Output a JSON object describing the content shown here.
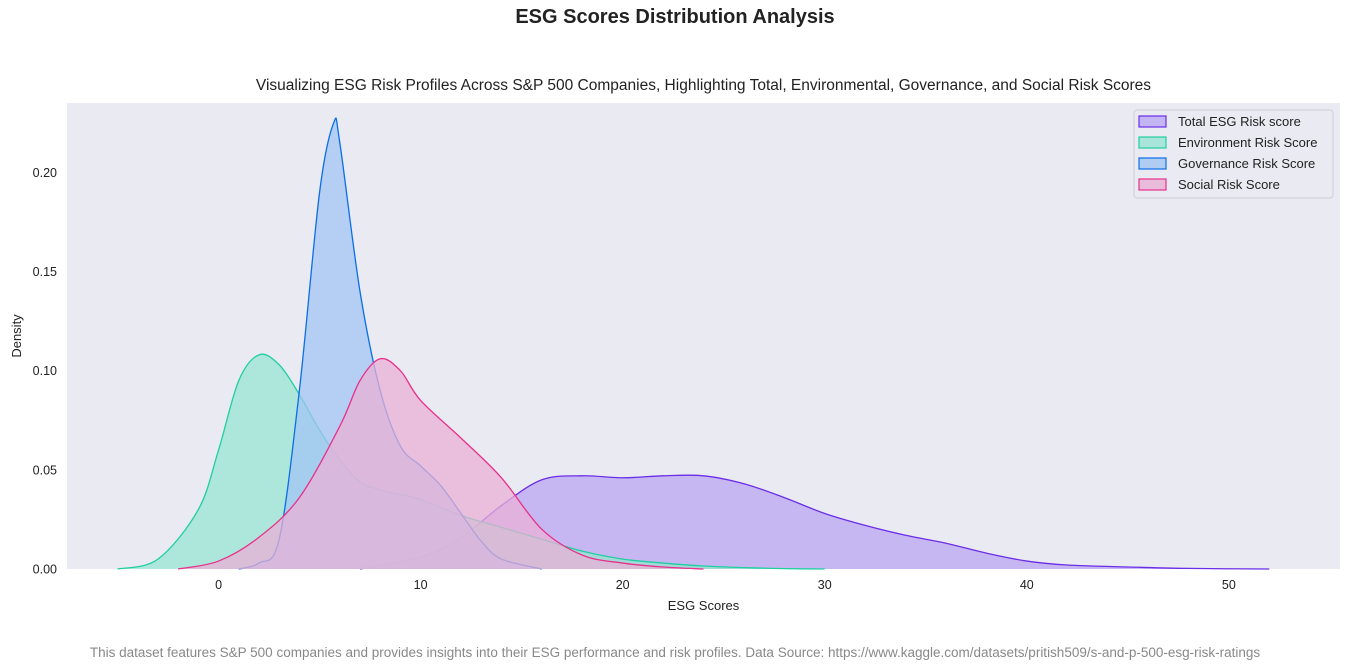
{
  "page": {
    "title": "ESG Scores Distribution Analysis",
    "footnote": "This dataset features S&P 500 companies and provides insights into their ESG performance and risk profiles. Data Source: https://www.kaggle.com/datasets/pritish509/s-and-p-500-esg-risk-ratings"
  },
  "chart_data": {
    "type": "area",
    "subtitle": "Visualizing ESG Risk Profiles Across S&P 500 Companies, Highlighting Total, Environmental, Governance, and Social Risk Scores",
    "xlabel": "ESG Scores",
    "ylabel": "Density",
    "xlim": [
      -7.5,
      55.5
    ],
    "ylim": [
      0,
      0.235
    ],
    "xticks": [
      0,
      10,
      20,
      30,
      40,
      50
    ],
    "yticks": [
      0.0,
      0.05,
      0.1,
      0.15,
      0.2
    ],
    "grid": false,
    "background": "#eaeaf2",
    "legend_position": "top-right",
    "series": [
      {
        "name": "Total ESG Risk score",
        "color": "#6a2ee8",
        "fill": "#b9a6f2",
        "x": [
          7,
          10,
          12,
          14,
          16,
          18,
          20,
          22,
          24,
          26,
          28,
          30,
          32,
          34,
          36,
          38,
          40,
          42,
          45,
          48,
          52
        ],
        "y": [
          0.0,
          0.006,
          0.016,
          0.032,
          0.045,
          0.047,
          0.046,
          0.047,
          0.047,
          0.043,
          0.036,
          0.028,
          0.022,
          0.017,
          0.013,
          0.008,
          0.004,
          0.002,
          0.001,
          0.0003,
          0.0
        ]
      },
      {
        "name": "Environment Risk Score",
        "color": "#1fcf9f",
        "fill": "#98e4d2",
        "x": [
          -5,
          -3,
          -1,
          0,
          1,
          2,
          3,
          4,
          5,
          6,
          7,
          8,
          10,
          12,
          14,
          16,
          18,
          20,
          22,
          24,
          26,
          28,
          30
        ],
        "y": [
          0.0,
          0.005,
          0.03,
          0.06,
          0.095,
          0.108,
          0.103,
          0.088,
          0.07,
          0.055,
          0.044,
          0.04,
          0.035,
          0.027,
          0.021,
          0.015,
          0.009,
          0.005,
          0.003,
          0.0015,
          0.0007,
          0.0002,
          0.0
        ]
      },
      {
        "name": "Governance Risk Score",
        "color": "#0a6fe8",
        "fill": "#a3c4f3",
        "x": [
          1,
          2,
          3,
          4,
          5,
          5.7,
          6,
          7,
          8,
          9,
          10,
          11,
          12,
          13,
          14,
          16
        ],
        "y": [
          0.0,
          0.003,
          0.015,
          0.09,
          0.19,
          0.225,
          0.215,
          0.14,
          0.09,
          0.062,
          0.052,
          0.042,
          0.028,
          0.014,
          0.005,
          0.0
        ]
      },
      {
        "name": "Social Risk Score",
        "color": "#e8308a",
        "fill": "#eab0d6",
        "x": [
          -2,
          0,
          2,
          4,
          6,
          7,
          8,
          9,
          10,
          12,
          14,
          16,
          18,
          20,
          22,
          24
        ],
        "y": [
          0.0,
          0.004,
          0.016,
          0.036,
          0.072,
          0.095,
          0.106,
          0.1,
          0.085,
          0.066,
          0.046,
          0.02,
          0.007,
          0.003,
          0.001,
          0.0
        ]
      }
    ]
  }
}
